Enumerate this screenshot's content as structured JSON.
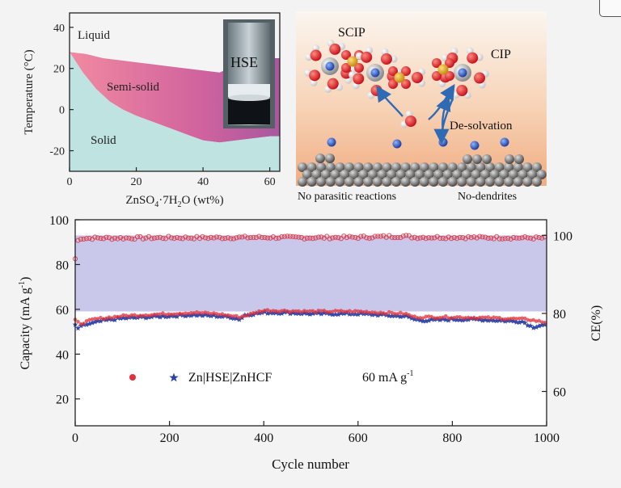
{
  "chart_data": [
    {
      "type": "area",
      "xlabel": "ZnSO",
      "xlabel_sub": "4",
      "xlabel_rest": "·7H",
      "xlabel_sub2": "2",
      "xlabel_end": "O (wt%)",
      "ylabel": "Temperature (°C)",
      "xlim": [
        0,
        63
      ],
      "ylim": [
        -30,
        47
      ],
      "xticks": [
        0,
        20,
        40,
        60
      ],
      "yticks": [
        -20,
        0,
        20,
        40
      ],
      "regions": [
        "Liquid",
        "Semi-solid",
        "Solid"
      ],
      "inset_label": "HSE",
      "upper_boundary": {
        "x": [
          0,
          5,
          10,
          15,
          20,
          25,
          30,
          35,
          40,
          45,
          50,
          55,
          60,
          63
        ],
        "y": [
          28,
          27,
          25,
          24,
          23,
          22,
          21,
          20,
          19,
          18,
          22,
          24,
          25,
          25
        ]
      },
      "lower_boundary": {
        "x": [
          0,
          4,
          8,
          12,
          16,
          20,
          25,
          30,
          35,
          40,
          45,
          50,
          55,
          60,
          63
        ],
        "y": [
          28,
          18,
          10,
          4,
          0,
          -3,
          -6,
          -9,
          -12,
          -15,
          -16,
          -15,
          -14,
          -13,
          -13
        ]
      },
      "colors": {
        "semi_solid": "#d9679a",
        "solid": "#bfe3e0",
        "liquid": "#f4f4f4"
      }
    },
    {
      "type": "scatter",
      "xlabel": "Cycle number",
      "ylabel": "Capacity (mA g",
      "ylabel_sup": "-1",
      "ylabel_end": ")",
      "y2label": "CE(%)",
      "xlim": [
        0,
        1000
      ],
      "ylim": [
        8,
        100
      ],
      "y2lim": [
        51.2,
        104
      ],
      "xticks": [
        0,
        200,
        400,
        600,
        800,
        1000
      ],
      "yticks": [
        20,
        40,
        60,
        80,
        100
      ],
      "y2ticks": [
        60,
        80,
        100
      ],
      "legend_label": "Zn|HSE|ZnHCF",
      "legend_position": "lower-left",
      "annotation": "60 mA g",
      "annotation_sup": "-1",
      "band": {
        "y2_from": 80.5,
        "y2_to": 100,
        "color": "#c9c8eb"
      },
      "series": [
        {
          "role": "ce",
          "axis": "right",
          "marker": "circle",
          "color": "#e0303a",
          "x": [
            0,
            2,
            5,
            8,
            12,
            20,
            40,
            100,
            200,
            300,
            400,
            500,
            600,
            700,
            720,
            800,
            900,
            1000
          ],
          "y": [
            94,
            96.5,
            98.5,
            99.0,
            99.3,
            99.2,
            99.3,
            99.3,
            99.4,
            99.4,
            99.5,
            99.4,
            99.5,
            99.8,
            99.5,
            99.5,
            99.4,
            99.3
          ]
        },
        {
          "role": "capacity",
          "axis": "left",
          "marker": "star",
          "color": "#2840a8",
          "x": [
            0,
            5,
            10,
            20,
            40,
            60,
            100,
            150,
            200,
            250,
            300,
            330,
            350,
            360,
            400,
            450,
            500,
            550,
            600,
            650,
            680,
            700,
            720,
            740,
            800,
            850,
            900,
            950,
            970,
            980,
            990,
            1000
          ],
          "y": [
            53,
            51.5,
            52,
            53,
            54,
            55,
            56,
            56.5,
            57,
            57.5,
            57,
            56.5,
            55.5,
            57.5,
            58.5,
            58.5,
            58,
            58,
            58,
            57.5,
            57,
            57,
            55.5,
            55,
            55.5,
            55.5,
            55,
            54.5,
            52,
            52.5,
            53,
            53
          ]
        },
        {
          "role": "capacity_overlay",
          "axis": "left",
          "marker": "circle",
          "color": "#e0303a",
          "x": [
            0,
            10,
            40,
            100,
            200,
            250,
            300,
            350,
            400,
            500,
            600,
            700,
            720,
            800,
            900,
            960,
            1000
          ],
          "y": [
            54.5,
            53,
            55,
            56.5,
            57.5,
            58,
            57.5,
            56,
            59,
            58.5,
            58.5,
            57.5,
            56,
            56,
            55.5,
            55,
            53.5
          ]
        }
      ]
    },
    {
      "type": "diagram",
      "labels": {
        "scip": "SCIP",
        "cip": "CIP",
        "desolvation": "De-solvation",
        "no_parasitic": "No parasitic reactions",
        "no_dendrites": "No-dendrites"
      }
    }
  ]
}
